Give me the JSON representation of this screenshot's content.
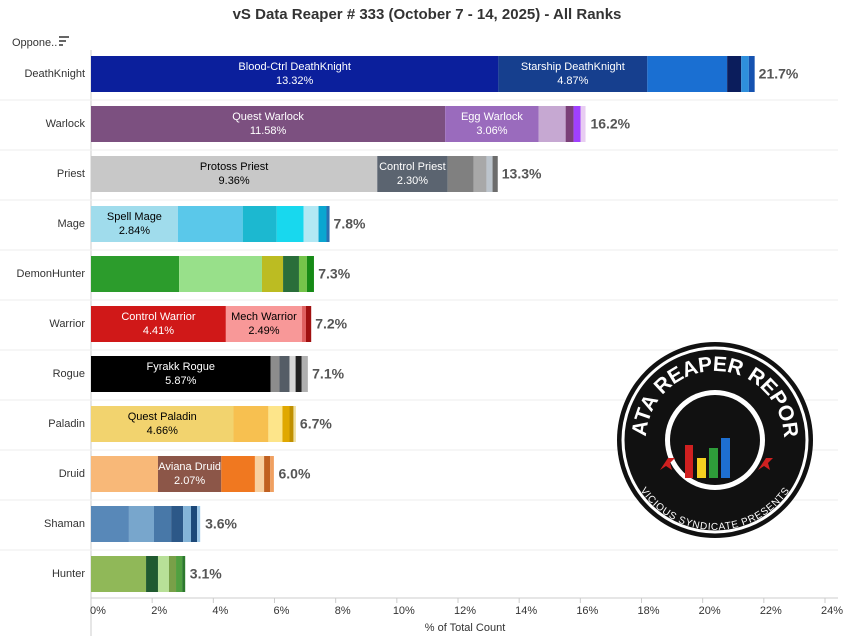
{
  "chart_data": {
    "type": "stacked-bar-horizontal",
    "title": "vS Data Reaper # 333 (October 7 - 14, 2025) - All Ranks",
    "sort_label": "Oppone..",
    "x_label": "% of Total Count",
    "xlim": [
      0,
      24
    ],
    "xticks": [
      {
        "value": 0,
        "label": "0%"
      },
      {
        "value": 2,
        "label": "2%"
      },
      {
        "value": 4,
        "label": "4%"
      },
      {
        "value": 6,
        "label": "6%"
      },
      {
        "value": 8,
        "label": "8%"
      },
      {
        "value": 10,
        "label": "10%"
      },
      {
        "value": 12,
        "label": "12%"
      },
      {
        "value": 14,
        "label": "14%"
      },
      {
        "value": 16,
        "label": "16%"
      },
      {
        "value": 18,
        "label": "18%"
      },
      {
        "value": 20,
        "label": "20%"
      },
      {
        "value": 22,
        "label": "22%"
      },
      {
        "value": 24,
        "label": "24%"
      }
    ],
    "categories": [
      "DeathKnight",
      "Warlock",
      "Priest",
      "Mage",
      "DemonHunter",
      "Warrior",
      "Rogue",
      "Paladin",
      "Druid",
      "Shaman",
      "Hunter"
    ],
    "totals": [
      21.7,
      16.2,
      13.3,
      7.8,
      7.3,
      7.2,
      7.1,
      6.7,
      6.0,
      3.6,
      3.1
    ],
    "total_labels": [
      "21.7%",
      "16.2%",
      "13.3%",
      "7.8%",
      "7.3%",
      "7.2%",
      "7.1%",
      "6.7%",
      "6.0%",
      "3.6%",
      "3.1%"
    ],
    "rows": [
      {
        "segments": [
          {
            "name": "Blood-Ctrl DeathKnight",
            "value": 13.32,
            "value_label": "13.32%",
            "color": "#0b1f9c"
          },
          {
            "name": "Starship DeathKnight",
            "value": 4.87,
            "value_label": "4.87%",
            "color": "#163f8e"
          },
          {
            "value": 2.61,
            "color": "#1a6fd2"
          },
          {
            "value": 0.46,
            "color": "#0b1d5c"
          },
          {
            "value": 0.25,
            "color": "#2e8fdc"
          },
          {
            "value": 0.19,
            "color": "#1552b0"
          }
        ]
      },
      {
        "segments": [
          {
            "name": "Quest Warlock",
            "value": 11.58,
            "value_label": "11.58%",
            "color": "#7c5080"
          },
          {
            "name": "Egg Warlock",
            "value": 3.06,
            "value_label": "3.06%",
            "color": "#9a6bbd"
          },
          {
            "value": 0.88,
            "color": "#c6a8d2"
          },
          {
            "value": 0.26,
            "color": "#7a3f78"
          },
          {
            "value": 0.23,
            "color": "#a040ff"
          },
          {
            "value": 0.16,
            "color": "#e8cdf2"
          }
        ]
      },
      {
        "segments": [
          {
            "name": "Protoss Priest",
            "value": 9.36,
            "value_label": "9.36%",
            "color": "#c8c8c8"
          },
          {
            "name": "Control Priest",
            "value": 2.3,
            "value_label": "2.30%",
            "color": "#5b6470"
          },
          {
            "value": 0.85,
            "color": "#808080"
          },
          {
            "value": 0.42,
            "color": "#a8a8a8"
          },
          {
            "value": 0.2,
            "color": "#bcc4cc"
          },
          {
            "value": 0.17,
            "color": "#6c6c6c"
          }
        ]
      },
      {
        "segments": [
          {
            "name": "Spell Mage",
            "value": 2.84,
            "value_label": "2.84%",
            "color": "#a0dcec"
          },
          {
            "value": 2.12,
            "color": "#5ac8ea"
          },
          {
            "value": 1.11,
            "color": "#1cb8d0"
          },
          {
            "value": 0.88,
            "color": "#18d8ee"
          },
          {
            "value": 0.49,
            "color": "#b2e8f4"
          },
          {
            "value": 0.26,
            "color": "#0aa6d0"
          },
          {
            "value": 0.1,
            "color": "#2b6fb0"
          }
        ]
      },
      {
        "segments": [
          {
            "value": 2.88,
            "color": "#2c9c2c"
          },
          {
            "value": 2.71,
            "color": "#98e08a"
          },
          {
            "value": 0.69,
            "color": "#bcbc22"
          },
          {
            "value": 0.52,
            "color": "#2a6e3a"
          },
          {
            "value": 0.26,
            "color": "#75c44a"
          },
          {
            "value": 0.23,
            "color": "#168a16"
          }
        ]
      },
      {
        "segments": [
          {
            "name": "Control Warrior",
            "value": 4.41,
            "value_label": "4.41%",
            "color": "#d01818"
          },
          {
            "name": "Mech Warrior",
            "value": 2.49,
            "value_label": "2.49%",
            "color": "#f89898"
          },
          {
            "value": 0.13,
            "color": "#e06060"
          },
          {
            "value": 0.17,
            "color": "#a01010"
          }
        ]
      },
      {
        "segments": [
          {
            "name": "Fyrakk Rogue",
            "value": 5.87,
            "value_label": "5.87%",
            "color": "#000000"
          },
          {
            "value": 0.29,
            "color": "#8c8c8c"
          },
          {
            "value": 0.33,
            "color": "#555d66"
          },
          {
            "value": 0.2,
            "color": "#d8d8d8"
          },
          {
            "value": 0.2,
            "color": "#222222"
          },
          {
            "value": 0.2,
            "color": "#b0b0b0"
          }
        ]
      },
      {
        "segments": [
          {
            "name": "Quest Paladin",
            "value": 4.66,
            "value_label": "4.66%",
            "color": "#f2d36e"
          },
          {
            "value": 1.14,
            "color": "#f7c050"
          },
          {
            "value": 0.46,
            "color": "#fde58a"
          },
          {
            "value": 0.23,
            "color": "#e0a800"
          },
          {
            "value": 0.13,
            "color": "#c09000"
          },
          {
            "value": 0.08,
            "color": "#f0e0a0"
          }
        ]
      },
      {
        "segments": [
          {
            "value": 2.19,
            "color": "#f8b878"
          },
          {
            "name": "Aviana Druid",
            "value": 2.07,
            "value_label": "2.07%",
            "color": "#8c5648"
          },
          {
            "value": 1.1,
            "color": "#f07820"
          },
          {
            "value": 0.3,
            "color": "#f8d0a0"
          },
          {
            "value": 0.2,
            "color": "#c06020"
          },
          {
            "value": 0.12,
            "color": "#f0a060"
          }
        ]
      },
      {
        "segments": [
          {
            "value": 1.24,
            "color": "#5888b8"
          },
          {
            "value": 0.82,
            "color": "#78a6cc"
          },
          {
            "value": 0.56,
            "color": "#4878a8"
          },
          {
            "value": 0.39,
            "color": "#2c5888"
          },
          {
            "value": 0.26,
            "color": "#84b4d8"
          },
          {
            "value": 0.2,
            "color": "#1c4878"
          },
          {
            "value": 0.1,
            "color": "#9cc8e8"
          }
        ]
      },
      {
        "segments": [
          {
            "value": 1.8,
            "color": "#90b858"
          },
          {
            "value": 0.39,
            "color": "#205a30"
          },
          {
            "value": 0.36,
            "color": "#b8e098"
          },
          {
            "value": 0.23,
            "color": "#78a048"
          },
          {
            "value": 0.2,
            "color": "#50a040"
          },
          {
            "value": 0.1,
            "color": "#2c7a2c"
          }
        ]
      }
    ]
  },
  "logo": {
    "title": "DATA REAPER REPORT",
    "subtitle": "VICIOUS SYNDICATE PRESENTS"
  }
}
